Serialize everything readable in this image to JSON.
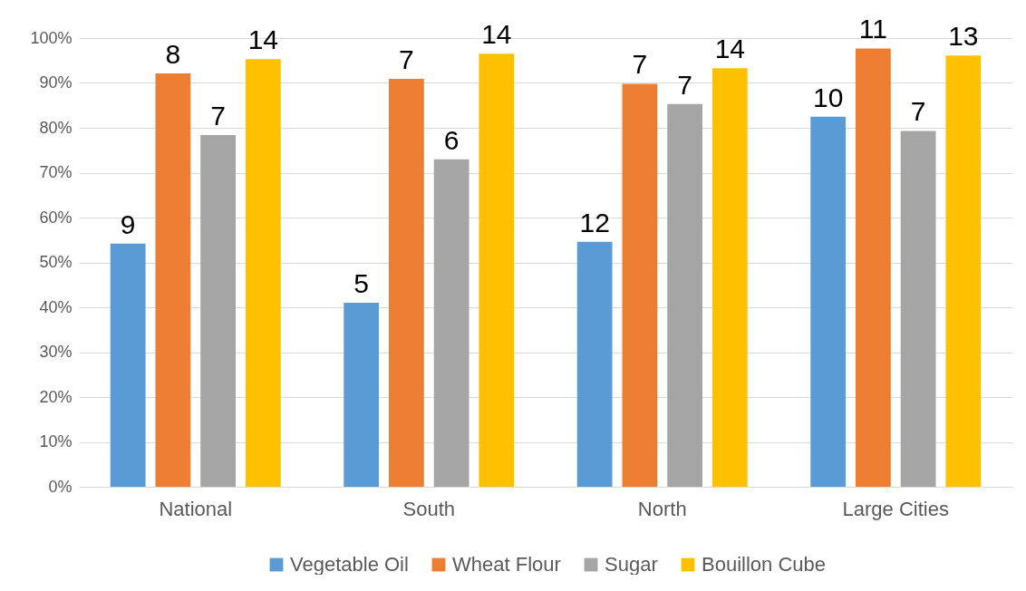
{
  "chart_data": {
    "type": "bar",
    "categories": [
      "National",
      "South",
      "North",
      "Large Cities"
    ],
    "series": [
      {
        "name": "Vegetable Oil",
        "color": "#5b9bd5",
        "values": [
          54.2,
          41.0,
          54.6,
          82.5
        ]
      },
      {
        "name": "Wheat Flour",
        "color": "#ed7d31",
        "values": [
          92.1,
          90.9,
          89.8,
          97.7
        ]
      },
      {
        "name": "Sugar",
        "color": "#a5a5a5",
        "values": [
          78.4,
          73.0,
          85.3,
          79.3
        ]
      },
      {
        "name": "Bouillon Cube",
        "color": "#ffc000",
        "values": [
          95.3,
          96.5,
          93.3,
          96.1
        ]
      }
    ],
    "annotations": [
      "9",
      "8",
      "7",
      "14",
      "5",
      "7",
      "6",
      "14",
      "12",
      "7",
      "7",
      "14",
      "10",
      "11",
      "7",
      "13"
    ],
    "ylim": [
      0,
      100
    ],
    "yticks": [
      {
        "value": 0,
        "label": "0%"
      },
      {
        "value": 10,
        "label": "10%"
      },
      {
        "value": 20,
        "label": "20%"
      },
      {
        "value": 30,
        "label": "30%"
      },
      {
        "value": 40,
        "label": "40%"
      },
      {
        "value": 50,
        "label": "50%"
      },
      {
        "value": 60,
        "label": "60%"
      },
      {
        "value": 70,
        "label": "70%"
      },
      {
        "value": 80,
        "label": "80%"
      },
      {
        "value": 90,
        "label": "90%"
      },
      {
        "value": 100,
        "label": "100%"
      }
    ],
    "grid": "y",
    "legend": "bottom"
  }
}
